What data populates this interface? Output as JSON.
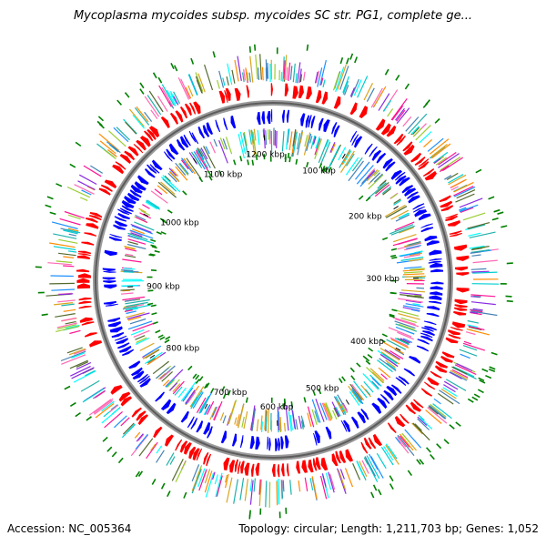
{
  "title": "Mycoplasma mycoides subsp. mycoides SC str. PG1, complete ge...",
  "accession": "Accession: NC_005364",
  "summary": "Topology: circular; Length: 1,211,703 bp; Genes: 1,052",
  "genome": {
    "length_kbp": 1211.703,
    "gene_count": 1052
  },
  "backbone_ticks": [
    {
      "label": "100 kbp",
      "kbp": 100
    },
    {
      "label": "200 kbp",
      "kbp": 200
    },
    {
      "label": "300 kbp",
      "kbp": 300
    },
    {
      "label": "400 kbp",
      "kbp": 400
    },
    {
      "label": "500 kbp",
      "kbp": 500
    },
    {
      "label": "600 kbp",
      "kbp": 600
    },
    {
      "label": "700 kbp",
      "kbp": 700
    },
    {
      "label": "800 kbp",
      "kbp": 800
    },
    {
      "label": "900 kbp",
      "kbp": 900
    },
    {
      "label": "1000 kbp",
      "kbp": 1000
    },
    {
      "label": "1100 kbp",
      "kbp": 1100
    },
    {
      "label": "1200 kbp",
      "kbp": 1200
    }
  ],
  "colors": {
    "forward_cds": "#ff0000",
    "reverse_cds": "#0000ff",
    "backbone": "#808080",
    "feature_palette": [
      "#ff1493",
      "#00ced1",
      "#1e90ff",
      "#9acd32",
      "#ff8c00",
      "#8a2be2",
      "#20b2aa",
      "#ff69b4",
      "#4682b4",
      "#daa520",
      "#556b2f",
      "#00ffff"
    ],
    "green_marks": "#008000"
  }
}
